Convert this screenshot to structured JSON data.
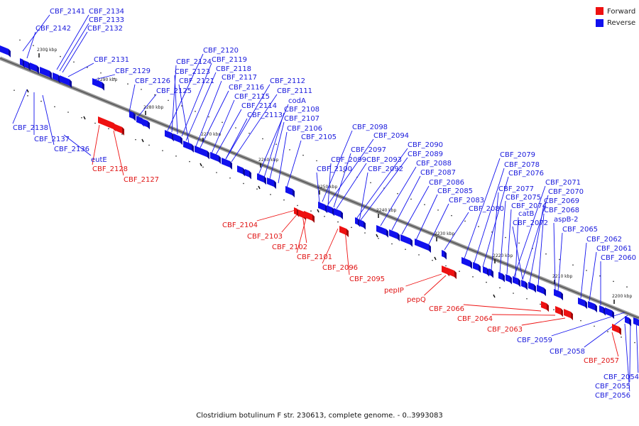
{
  "caption": "Clostridium botulinum F str. 230613, complete genome. - 0..3993083",
  "legend": {
    "forward": {
      "label": "Forward",
      "color": "#ee1111"
    },
    "reverse": {
      "label": "Reverse",
      "color": "#1111ee"
    }
  },
  "ticks": [
    "2300 kbp",
    "2290 kbp",
    "2280 kbp",
    "2270 kbp",
    "2260 kbp",
    "2250 kbp",
    "2240 kbp",
    "2230 kbp",
    "2220 kbp",
    "2210 kbp",
    "2200 kbp"
  ],
  "genes_reverse": [
    "CBF_2141",
    "CBF_2134",
    "CBF_2133",
    "CBF_2142",
    "CBF_2132",
    "CBF_2131",
    "CBF_2129",
    "CBF_2120",
    "CBF_2124",
    "CBF_2119",
    "CBF_2123",
    "CBF_2118",
    "CBF_2126",
    "CBF_2121",
    "CBF_2117",
    "CBF_2125",
    "CBF_2112",
    "CBF_2116",
    "CBF_2111",
    "CBF_2115",
    "codA",
    "CBF_2114",
    "CBF_2108",
    "CBF_2113",
    "CBF_2107",
    "CBF_2106",
    "CBF_2105",
    "CBF_2138",
    "CBF_2137",
    "CBF_2136",
    "eutE",
    "CBF_2098",
    "CBF_2094",
    "CBF_2097",
    "CBF_2093",
    "CBF_2099",
    "CBF_2090",
    "CBF_2089",
    "CBF_2100",
    "CBF_2092",
    "CBF_2088",
    "CBF_2087",
    "CBF_2086",
    "CBF_2085",
    "CBF_2083",
    "CBF_2080",
    "CBF_2079",
    "CBF_2078",
    "CBF_2076",
    "CBF_2071",
    "CBF_2077",
    "CBF_2070",
    "CBF_2075",
    "CBF_2069",
    "CBF_2074",
    "CBF_2068",
    "catB",
    "aspB-2",
    "CBF_2072",
    "CBF_2065",
    "CBF_2062",
    "CBF_2061",
    "CBF_2060",
    "CBF_2059",
    "CBF_2058",
    "CBF_2054",
    "CBF_2055",
    "CBF_2056"
  ],
  "genes_forward": [
    "CBF_2128",
    "CBF_2127",
    "CBF_2104",
    "CBF_2103",
    "CBF_2102",
    "CBF_2101",
    "CBF_2096",
    "CBF_2095",
    "pepIP",
    "pepQ",
    "CBF_2066",
    "CBF_2064",
    "CBF_2063",
    "CBF_2057"
  ]
}
